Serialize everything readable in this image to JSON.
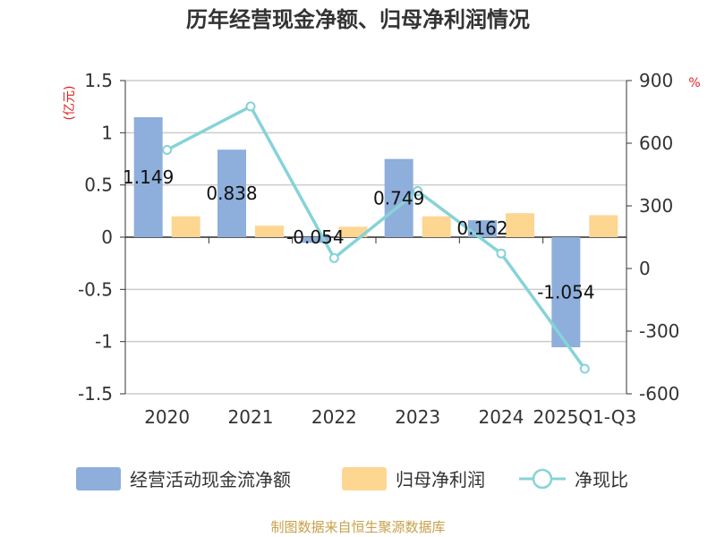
{
  "chart_data": {
    "type": "bar",
    "title": "历年经营现金净额、归母净利润情况",
    "categories": [
      "2020",
      "2021",
      "2022",
      "2023",
      "2024",
      "2025Q1-Q3"
    ],
    "series": [
      {
        "name": "经营活动现金流净额",
        "kind": "bar",
        "axis": "left",
        "color": "#8eaedb",
        "values": [
          1.149,
          0.838,
          -0.054,
          0.749,
          0.162,
          -1.054
        ],
        "labels": [
          "1.149",
          "0.838",
          "-0.054",
          "0.749",
          "0.162",
          "-1.054"
        ]
      },
      {
        "name": "归母净利润",
        "kind": "bar",
        "axis": "left",
        "color": "#fdd692",
        "values": [
          0.2,
          0.11,
          0.1,
          0.2,
          0.23,
          0.21
        ]
      },
      {
        "name": "净现比",
        "kind": "line",
        "axis": "right",
        "color": "#86d3d8",
        "values": [
          568,
          776,
          50,
          371,
          72,
          -480
        ]
      }
    ],
    "y_left": {
      "unit": "(亿元)",
      "range": [
        -1.5,
        1.5
      ],
      "ticks": [
        "1.5",
        "1",
        "0.5",
        "0",
        "-0.5",
        "-1",
        "-1.5"
      ]
    },
    "y_right": {
      "unit": "%",
      "range": [
        -600,
        900
      ],
      "ticks": [
        "900",
        "600",
        "300",
        "0",
        "-300",
        "-600"
      ]
    },
    "grid": true,
    "legend_position": "bottom"
  },
  "source": "制图数据来自恒生聚源数据库",
  "colors": {
    "axis_unit": "#e02020",
    "source": "#c8a04a",
    "grid": "#cccccc",
    "axis": "#333333"
  }
}
